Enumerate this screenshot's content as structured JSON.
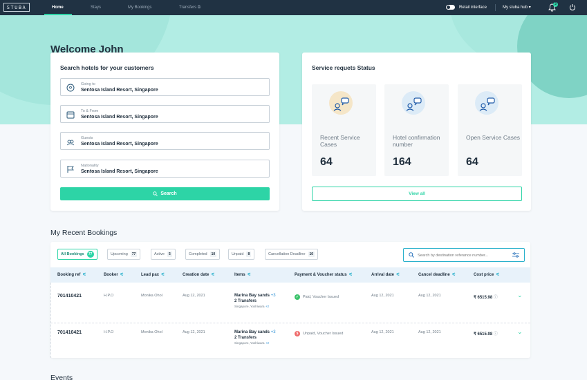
{
  "nav": {
    "logo": "STUBA",
    "items": [
      "Home",
      "Stays",
      "My Bookings",
      "Transfers"
    ],
    "retail_label": "Retail interface",
    "hub_label": "My stuba hub",
    "bell_count": "3"
  },
  "welcome": "Welcome John",
  "search_card": {
    "title": "Search hotels for your customers",
    "fields": [
      {
        "label": "Going to",
        "value": "Sentosa Island Resort, Singapore",
        "icon": "location-pin-icon"
      },
      {
        "label": "To & From",
        "value": "Sentosa Island Resort, Singapore",
        "icon": "calendar-icon"
      },
      {
        "label": "Guests",
        "value": "Sentosa Island Resort, Singapore",
        "icon": "guests-icon"
      },
      {
        "label": "Nationality",
        "value": "Sentosa Island Resort, Singapore",
        "icon": "flag-icon"
      }
    ],
    "search_button": "Search"
  },
  "service_card": {
    "title": "Service requets Status",
    "stats": [
      {
        "label": "Recent Service Cases",
        "value": "64",
        "avatar_bg": "#f5e6c8"
      },
      {
        "label": "Hotel confirmation number",
        "value": "164",
        "avatar_bg": "#dcebf7"
      },
      {
        "label": "Open Service Cases",
        "value": "64",
        "avatar_bg": "#dcebf7"
      }
    ],
    "view_all": "View all"
  },
  "bookings": {
    "title": "My Recent Bookings",
    "chips": [
      {
        "label": "All Bookings",
        "count": "77"
      },
      {
        "label": "Upcoming",
        "count": "77"
      },
      {
        "label": "Active",
        "count": "5"
      },
      {
        "label": "Completed",
        "count": "10"
      },
      {
        "label": "Unpaid",
        "count": "8"
      },
      {
        "label": "Cancellation Deadline",
        "count": "10"
      }
    ],
    "search_placeholder": "Search by destination referance number...",
    "columns": [
      "Booking ref",
      "Booker",
      "Lead pax",
      "Creation date",
      "Items",
      "Payment & Voucher status",
      "Arrival date",
      "Cancel deadline",
      "Cost price"
    ],
    "rows": [
      {
        "ref": "701410421",
        "booker": "H.P.O",
        "lead_pax": "Monika Ohol",
        "creation": "Aug 12, 2021",
        "item_main": "Marina Bay sands",
        "item_main_plus": "+3",
        "item_second": "2 Transfers",
        "item_location": "Singapore, Yoshiwara",
        "item_location_plus": "+2",
        "status": "Paid,  Voucher Issued",
        "status_color": "#3cc36b",
        "status_glyph": "✓",
        "arrival": "Aug 12, 2021",
        "cancel": "Aug 12, 2021",
        "price": "₹ 6515.98"
      },
      {
        "ref": "701410421",
        "booker": "H.P.O",
        "lead_pax": "Monika Ohol",
        "creation": "Aug 12, 2021",
        "item_main": "Marina Bay sands",
        "item_main_plus": "+3",
        "item_second": "2 Transfers",
        "item_location": "Singapore, Yoshiwara",
        "item_location_plus": "+2",
        "status": "Unpaid,  Voucher Issued",
        "status_color": "#ef6a6a",
        "status_glyph": "$",
        "arrival": "Aug 12, 2021",
        "cancel": "Aug 12, 2021",
        "price": "₹ 6515.98"
      }
    ]
  },
  "events_title": "Events"
}
